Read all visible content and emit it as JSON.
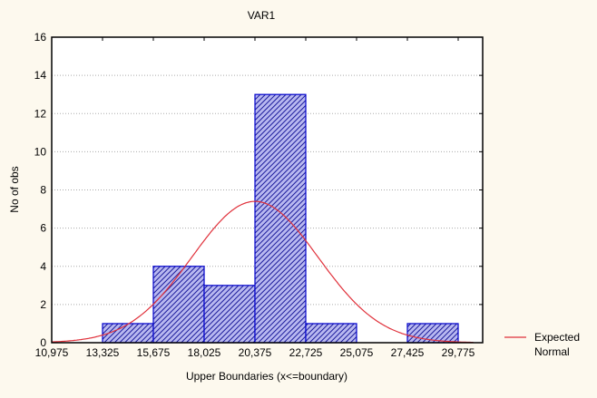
{
  "chart_data": {
    "type": "bar",
    "title": "VAR1",
    "xlabel": "Upper Boundaries (x<=boundary)",
    "ylabel": "No of obs",
    "x_ticks": [
      "10,975",
      "13,325",
      "15,675",
      "18,025",
      "20,375",
      "22,725",
      "25,075",
      "27,425",
      "29,775"
    ],
    "x_tick_values": [
      10975,
      13325,
      15675,
      18025,
      20375,
      22725,
      25075,
      27425,
      29775
    ],
    "bin_width": 2350,
    "bins_upper": [
      13325,
      15675,
      18025,
      20375,
      22725,
      25075,
      27425,
      29775
    ],
    "values": [
      0,
      1,
      4,
      3,
      13,
      1,
      0,
      1
    ],
    "y_ticks": [
      0,
      2,
      4,
      6,
      8,
      10,
      12,
      14,
      16
    ],
    "ylim": [
      0,
      16
    ],
    "xlim": [
      10975,
      32125
    ],
    "grid": true,
    "expected_normal": {
      "mean": 20375,
      "sd": 2914,
      "n": 23,
      "color": "#e0303a"
    },
    "legend": {
      "label_line1": "Expected",
      "label_line2": "Normal",
      "placement": "right"
    },
    "bar_color": "#0000cc"
  }
}
